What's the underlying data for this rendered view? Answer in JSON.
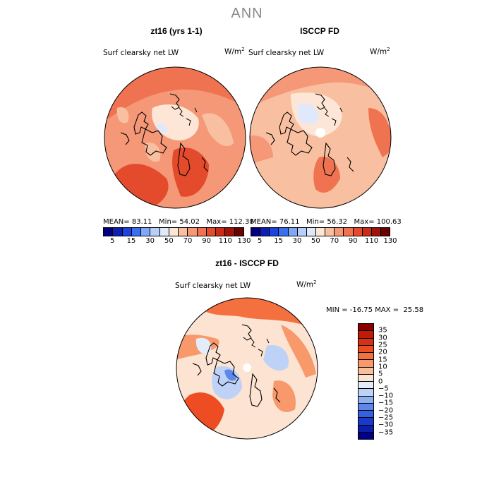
{
  "figure_title": "ANN",
  "panels": [
    {
      "title": "zt16 (yrs 1-1)",
      "variable": "Surf clearsky net LW",
      "units": "W/m",
      "units_sup": "2",
      "stats": {
        "mean_label": "MEAN=",
        "mean": "83.11",
        "min_label": "Min=",
        "min": "54.02",
        "max_label": "Max=",
        "max": "112.38"
      }
    },
    {
      "title": "ISCCP FD",
      "variable": "Surf clearsky net LW",
      "units": "W/m",
      "units_sup": "2",
      "stats": {
        "mean_label": "MEAN=",
        "mean": "76.11",
        "min_label": "Min=",
        "min": "56.32",
        "max_label": "Max=",
        "max": "100.63"
      }
    },
    {
      "title": "zt16 - ISCCP FD",
      "variable": "Surf clearsky net LW",
      "units": "W/m",
      "units_sup": "2",
      "stats_line": "MIN = -16.75 MAX =  25.58"
    }
  ],
  "colorbar_abs": {
    "labels": [
      "5",
      "15",
      "30",
      "50",
      "70",
      "90",
      "110",
      "130"
    ],
    "colors": [
      "#00007f",
      "#0d1fb0",
      "#1a44dd",
      "#3a6ff0",
      "#7fa6f7",
      "#b8cff9",
      "#dfe9fb",
      "#fde6d6",
      "#f8c0a0",
      "#f59878",
      "#f07351",
      "#e44a2c",
      "#c92d17",
      "#9e1408",
      "#6b0000"
    ]
  },
  "colorbar_diff": {
    "labels": [
      "35",
      "30",
      "25",
      "20",
      "15",
      "10",
      "5",
      "0",
      "−5",
      "−10",
      "−15",
      "−20",
      "−25",
      "−30",
      "−35"
    ],
    "colors": [
      "#8a0000",
      "#c01a08",
      "#d83012",
      "#ee4c22",
      "#f5703f",
      "#f8996c",
      "#f9bf9c",
      "#fce3d2",
      "#e4ecf9",
      "#bed1f7",
      "#8eb0f2",
      "#5e87ec",
      "#3560e0",
      "#1a3ac8",
      "#0c1ea8",
      "#00008a"
    ]
  }
}
